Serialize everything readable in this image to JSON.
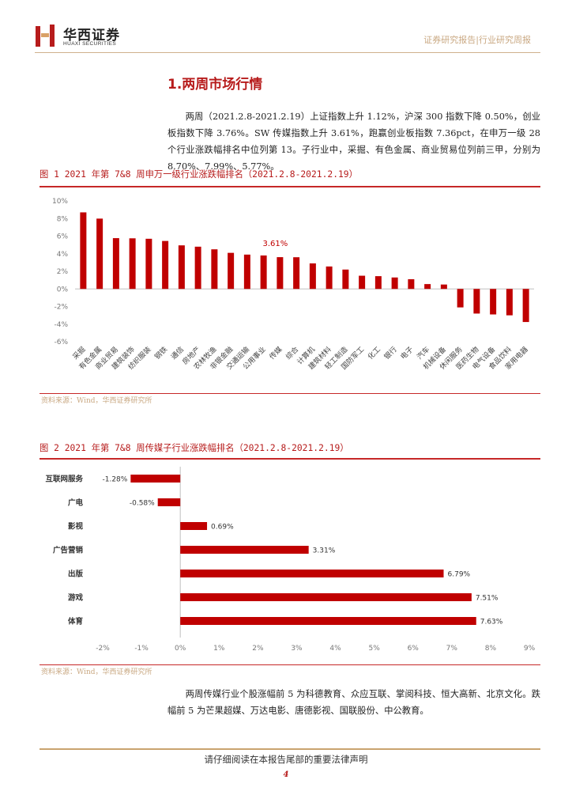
{
  "header": {
    "logo_cn": "华西证券",
    "logo_en": "HUAXI SECURITIES",
    "right_text": "证券研究报告|行业研究周报",
    "brand_color": "#b71c1c"
  },
  "section_title": "1.两周市场行情",
  "paragraph1": "两周（2021.2.8-2021.2.19）上证指数上升 1.12%，沪深 300 指数下降 0.50%，创业板指数下降 3.76%。SW 传媒指数上升 3.61%，跑赢创业板指数 7.36pct，在申万一级 28 个行业涨跌幅排名中位列第 13。子行业中，采掘、有色金属、商业贸易位列前三甲，分别为 8.70%、7.99%、5.77%。",
  "figure1": {
    "title": "图 1 2021 年第 7&8 周申万一级行业涨跌幅排名（2021.2.8-2021.2.19）",
    "source": "资料来源：Wind，华西证券研究所"
  },
  "figure2": {
    "title": "图 2 2021 年第 7&8 周传媒子行业涨跌幅排名（2021.2.8-2021.2.19）",
    "source": "资料来源：Wind，华西证券研究所"
  },
  "paragraph2": "两周传媒行业个股涨幅前 5 为科德教育、众应互联、掌阅科技、恒大高新、北京文化。跌幅前 5 为芒果超媒、万达电影、唐德影视、国联股份、中公教育。",
  "footer": {
    "note": "请仔细阅读在本报告尾部的重要法律声明",
    "page_number": "4"
  },
  "chart_data": [
    {
      "type": "bar",
      "orientation": "vertical",
      "categories": [
        "采掘",
        "有色金属",
        "商业贸易",
        "建筑装饰",
        "纺织服装",
        "钢铁",
        "通信",
        "房地产",
        "农林牧渔",
        "非银金融",
        "交通运输",
        "公用事业",
        "传媒",
        "综合",
        "计算机",
        "建筑材料",
        "轻工制造",
        "国防军工",
        "化工",
        "银行",
        "电子",
        "汽车",
        "机械设备",
        "休闲服务",
        "医药生物",
        "电气设备",
        "食品饮料",
        "家用电器"
      ],
      "values": [
        8.7,
        7.99,
        5.77,
        5.75,
        5.7,
        5.45,
        4.95,
        4.8,
        4.5,
        4.1,
        3.9,
        3.8,
        3.61,
        3.6,
        2.9,
        2.55,
        2.2,
        1.5,
        1.45,
        1.3,
        1.1,
        0.55,
        0.5,
        -2.1,
        -2.8,
        -2.9,
        -3.0,
        -3.76
      ],
      "annotations": [
        {
          "category": "传媒",
          "label": "3.61%"
        }
      ],
      "ylim": [
        -6,
        10
      ],
      "yticks": [
        "-6%",
        "-4%",
        "-2%",
        "0%",
        "2%",
        "4%",
        "6%",
        "8%",
        "10%"
      ],
      "bar_color": "#c00000",
      "grid": false,
      "legend": "none"
    },
    {
      "type": "bar",
      "orientation": "horizontal",
      "categories": [
        "互联网服务",
        "广电",
        "影视",
        "广告营销",
        "出版",
        "游戏",
        "体育"
      ],
      "values": [
        -1.28,
        -0.58,
        0.69,
        3.31,
        6.79,
        7.51,
        7.63
      ],
      "labels": [
        "-1.28%",
        "-0.58%",
        "0.69%",
        "3.31%",
        "6.79%",
        "7.51%",
        "7.63%"
      ],
      "xlim": [
        -2,
        9
      ],
      "xticks": [
        "-2%",
        "-1%",
        "0%",
        "1%",
        "2%",
        "3%",
        "4%",
        "5%",
        "6%",
        "7%",
        "8%",
        "9%"
      ],
      "bar_color": "#c00000",
      "grid": false,
      "legend": "none"
    }
  ]
}
